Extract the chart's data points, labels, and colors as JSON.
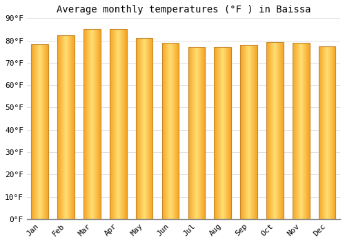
{
  "title": "Average monthly temperatures (°F ) in Baissa",
  "months": [
    "Jan",
    "Feb",
    "Mar",
    "Apr",
    "May",
    "Jun",
    "Jul",
    "Aug",
    "Sep",
    "Oct",
    "Nov",
    "Dec"
  ],
  "values": [
    78.4,
    82.2,
    85.0,
    85.0,
    81.0,
    79.0,
    77.2,
    77.2,
    78.0,
    79.2,
    79.0,
    77.4
  ],
  "bar_color_center": "#FFD966",
  "bar_color_edge": "#F5A623",
  "bar_border_color": "#C8882A",
  "background_color": "#ffffff",
  "plot_bg_color": "#ffffff",
  "grid_color": "#e0e0e0",
  "title_fontsize": 10,
  "tick_fontsize": 8,
  "ylim": [
    0,
    90
  ],
  "yticks": [
    0,
    10,
    20,
    30,
    40,
    50,
    60,
    70,
    80,
    90
  ],
  "ytick_labels": [
    "0°F",
    "10°F",
    "20°F",
    "30°F",
    "40°F",
    "50°F",
    "60°F",
    "70°F",
    "80°F",
    "90°F"
  ]
}
